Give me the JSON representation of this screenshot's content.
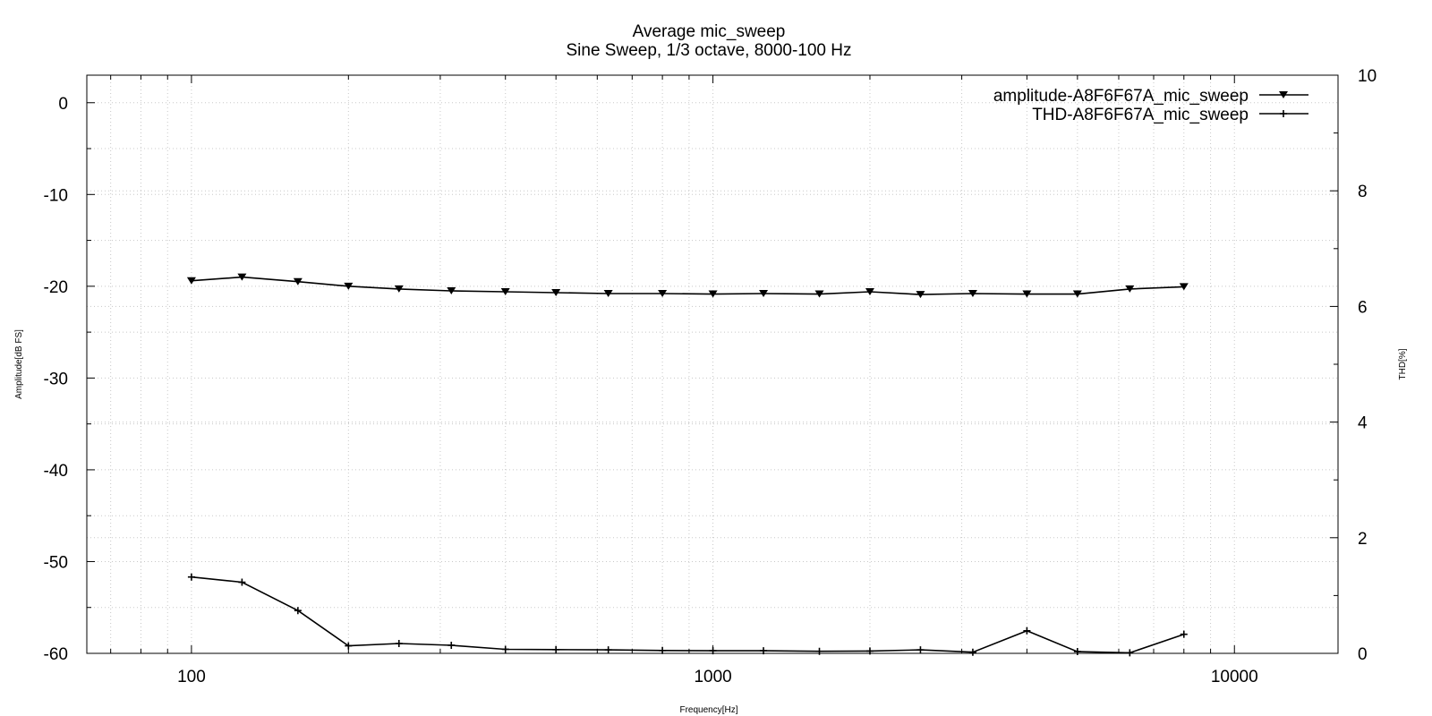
{
  "chart_data": {
    "type": "line",
    "title": "Average mic_sweep",
    "subtitle": "Sine Sweep, 1/3 octave, 8000-100 Hz",
    "xlabel": "Frequency[Hz]",
    "ylabel": "Amplitude[dB FS]",
    "y2label": "THD[%]",
    "xscale": "log",
    "xlim": [
      63,
      15800
    ],
    "ylim": [
      -60,
      3
    ],
    "y2lim": [
      0,
      10
    ],
    "xticks": [
      "100",
      "1000",
      "10000"
    ],
    "yticks": [
      "0",
      "-10",
      "-20",
      "-30",
      "-40",
      "-50",
      "-60"
    ],
    "y2ticks": [
      "10",
      "8",
      "6",
      "4",
      "2",
      "0"
    ],
    "grid": true,
    "legend_position": "top-right",
    "x": [
      100,
      125,
      160,
      200,
      250,
      315,
      400,
      500,
      630,
      800,
      1000,
      1250,
      1600,
      2000,
      2500,
      3150,
      4000,
      5000,
      6300,
      8000
    ],
    "series": [
      {
        "name": "amplitude-A8F6F67A_mic_sweep",
        "axis": "left",
        "marker": "triangle-down",
        "values": [
          -19.4,
          -19.0,
          -19.5,
          -20.0,
          -20.3,
          -20.5,
          -20.6,
          -20.7,
          -20.8,
          -20.8,
          -20.85,
          -20.8,
          -20.85,
          -20.6,
          -20.9,
          -20.8,
          -20.85,
          -20.85,
          -20.3,
          -20.05
        ]
      },
      {
        "name": "THD-A8F6F67A_mic_sweep",
        "axis": "right",
        "marker": "plus",
        "values": [
          1.32,
          1.23,
          0.74,
          0.13,
          0.17,
          0.14,
          0.07,
          0.065,
          0.06,
          0.05,
          0.045,
          0.045,
          0.035,
          0.04,
          0.06,
          0.02,
          0.39,
          0.03,
          0.01,
          0.33
        ]
      }
    ]
  }
}
